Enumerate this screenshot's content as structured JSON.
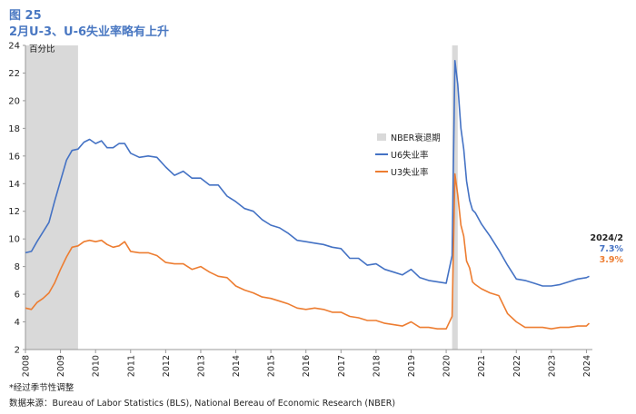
{
  "figure": {
    "label": "图 25",
    "title": "2月U-3、U-6失业率略有上升"
  },
  "footnotes": {
    "note": "*经过季节性调整",
    "source": "数据来源：Bureau of Labor Statistics (BLS), National Bereau of Economic Research (NBER)"
  },
  "latest": {
    "date": "2024/2",
    "u6": "7.3%",
    "u3": "3.9%"
  },
  "colors": {
    "u6": "#4472c4",
    "u3": "#ed7d31",
    "recession": "#d9d9d9",
    "axis": "#999999",
    "text": "#222222"
  },
  "chart_data": {
    "type": "line",
    "ylabel": "百分比",
    "ylim": [
      2,
      24
    ],
    "yticks": [
      2,
      4,
      6,
      8,
      10,
      12,
      14,
      16,
      18,
      20,
      22,
      24
    ],
    "xlim": [
      2008.0,
      2024.17
    ],
    "xticks": [
      "2008",
      "2009",
      "2010",
      "2011",
      "2012",
      "2013",
      "2014",
      "2015",
      "2016",
      "2017",
      "2018",
      "2019",
      "2020",
      "2021",
      "2022",
      "2023",
      "2024"
    ],
    "grid": false,
    "legend_position": "center-right",
    "recessions": [
      {
        "name": "NBER衰退期",
        "start": 2008.0,
        "end": 2009.5
      },
      {
        "name": "NBER衰退期",
        "start": 2020.17,
        "end": 2020.33
      }
    ],
    "series": [
      {
        "name": "U6失业率",
        "x": [
          2008.0,
          2008.17,
          2008.33,
          2008.5,
          2008.67,
          2008.83,
          2009.0,
          2009.17,
          2009.33,
          2009.5,
          2009.67,
          2009.83,
          2010.0,
          2010.17,
          2010.33,
          2010.5,
          2010.67,
          2010.83,
          2011.0,
          2011.25,
          2011.5,
          2011.75,
          2012.0,
          2012.25,
          2012.5,
          2012.75,
          2013.0,
          2013.25,
          2013.5,
          2013.75,
          2014.0,
          2014.25,
          2014.5,
          2014.75,
          2015.0,
          2015.25,
          2015.5,
          2015.75,
          2016.0,
          2016.25,
          2016.5,
          2016.75,
          2017.0,
          2017.25,
          2017.5,
          2017.75,
          2018.0,
          2018.25,
          2018.5,
          2018.75,
          2019.0,
          2019.25,
          2019.5,
          2019.75,
          2020.0,
          2020.17,
          2020.25,
          2020.33,
          2020.42,
          2020.5,
          2020.58,
          2020.67,
          2020.75,
          2020.83,
          2021.0,
          2021.25,
          2021.5,
          2021.75,
          2022.0,
          2022.25,
          2022.5,
          2022.75,
          2023.0,
          2023.25,
          2023.5,
          2023.75,
          2024.0,
          2024.08
        ],
        "values": [
          9.0,
          9.1,
          9.8,
          10.5,
          11.2,
          12.7,
          14.2,
          15.7,
          16.4,
          16.5,
          17.0,
          17.2,
          16.9,
          17.1,
          16.6,
          16.6,
          16.9,
          16.9,
          16.2,
          15.9,
          16.0,
          15.9,
          15.2,
          14.6,
          14.9,
          14.4,
          14.4,
          13.9,
          13.9,
          13.1,
          12.7,
          12.2,
          12.0,
          11.4,
          11.0,
          10.8,
          10.4,
          9.9,
          9.8,
          9.7,
          9.6,
          9.4,
          9.3,
          8.6,
          8.6,
          8.1,
          8.2,
          7.8,
          7.6,
          7.4,
          7.8,
          7.2,
          7.0,
          6.9,
          6.8,
          8.8,
          22.9,
          21.2,
          18.0,
          16.5,
          14.2,
          12.8,
          12.1,
          11.9,
          11.1,
          10.2,
          9.2,
          8.1,
          7.1,
          7.0,
          6.8,
          6.6,
          6.6,
          6.7,
          6.9,
          7.1,
          7.2,
          7.3
        ]
      },
      {
        "name": "U3失业率",
        "x": [
          2008.0,
          2008.17,
          2008.33,
          2008.5,
          2008.67,
          2008.83,
          2009.0,
          2009.17,
          2009.33,
          2009.5,
          2009.67,
          2009.83,
          2010.0,
          2010.17,
          2010.33,
          2010.5,
          2010.67,
          2010.83,
          2011.0,
          2011.25,
          2011.5,
          2011.75,
          2012.0,
          2012.25,
          2012.5,
          2012.75,
          2013.0,
          2013.25,
          2013.5,
          2013.75,
          2014.0,
          2014.25,
          2014.5,
          2014.75,
          2015.0,
          2015.25,
          2015.5,
          2015.75,
          2016.0,
          2016.25,
          2016.5,
          2016.75,
          2017.0,
          2017.25,
          2017.5,
          2017.75,
          2018.0,
          2018.25,
          2018.5,
          2018.75,
          2019.0,
          2019.25,
          2019.5,
          2019.75,
          2020.0,
          2020.17,
          2020.25,
          2020.33,
          2020.42,
          2020.5,
          2020.58,
          2020.67,
          2020.75,
          2020.83,
          2021.0,
          2021.25,
          2021.5,
          2021.75,
          2022.0,
          2022.25,
          2022.5,
          2022.75,
          2023.0,
          2023.25,
          2023.5,
          2023.75,
          2024.0,
          2024.08
        ],
        "values": [
          5.0,
          4.9,
          5.4,
          5.7,
          6.1,
          6.8,
          7.8,
          8.7,
          9.4,
          9.5,
          9.8,
          9.9,
          9.8,
          9.9,
          9.6,
          9.4,
          9.5,
          9.8,
          9.1,
          9.0,
          9.0,
          8.8,
          8.3,
          8.2,
          8.2,
          7.8,
          8.0,
          7.6,
          7.3,
          7.2,
          6.6,
          6.3,
          6.1,
          5.8,
          5.7,
          5.5,
          5.3,
          5.0,
          4.9,
          5.0,
          4.9,
          4.7,
          4.7,
          4.4,
          4.3,
          4.1,
          4.1,
          3.9,
          3.8,
          3.7,
          4.0,
          3.6,
          3.6,
          3.5,
          3.5,
          4.4,
          14.7,
          13.2,
          11.0,
          10.2,
          8.4,
          7.9,
          6.9,
          6.7,
          6.4,
          6.1,
          5.9,
          4.6,
          4.0,
          3.6,
          3.6,
          3.6,
          3.5,
          3.6,
          3.6,
          3.7,
          3.7,
          3.9
        ]
      }
    ]
  }
}
